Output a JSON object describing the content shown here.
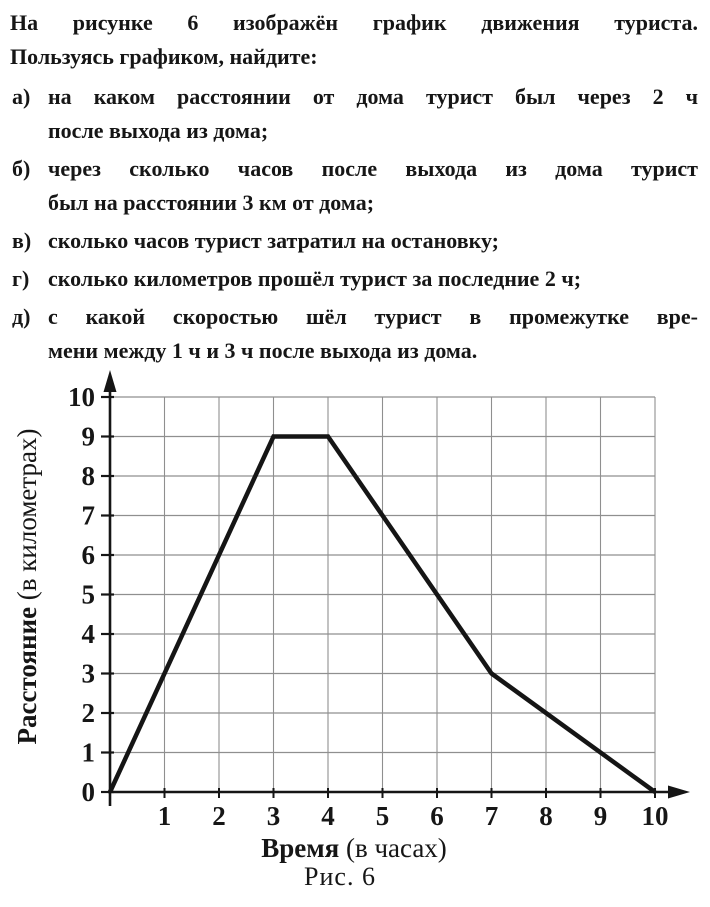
{
  "page": {
    "background": "#ffffff",
    "text_color": "#161616"
  },
  "problem": {
    "intro_lines": [
      "На рисунке 6 изображён график движения туриста.",
      "Пользуясь графиком, найдите:"
    ],
    "items": [
      {
        "label": "а)",
        "lines": [
          "на каком расстоянии от дома турист был через 2 ч",
          "после выхода из дома;"
        ]
      },
      {
        "label": "б)",
        "lines": [
          "через сколько часов после выхода из дома турист",
          "был на расстоянии 3 км от дома;"
        ]
      },
      {
        "label": "в)",
        "lines": [
          "сколько часов турист затратил на остановку;"
        ]
      },
      {
        "label": "г)",
        "lines": [
          "сколько километров прошёл турист за последние 2 ч;"
        ]
      },
      {
        "label": "д)",
        "lines": [
          "с какой скоростью шёл турист в промежутке вре-",
          "мени между 1 ч и 3 ч после выхода из дома."
        ]
      }
    ]
  },
  "chart_data": {
    "type": "line",
    "title": "",
    "xlabel": "Время (в часах)",
    "xlabel_bold": "Время",
    "xlabel_rest": " (в часах)",
    "ylabel": "Расстояние (в километрах)",
    "ylabel_bold": "Расстояние",
    "ylabel_rest": " (в километрах)",
    "xlim": [
      0,
      10
    ],
    "ylim": [
      0,
      10
    ],
    "x_ticks": [
      "1",
      "2",
      "3",
      "4",
      "5",
      "6",
      "7",
      "8",
      "9",
      "10"
    ],
    "y_ticks": [
      "0",
      "1",
      "2",
      "3",
      "4",
      "5",
      "6",
      "7",
      "8",
      "9",
      "10"
    ],
    "grid": true,
    "legend": "none",
    "line_color": "#151515",
    "axis_color": "#151515",
    "grid_color": "#8f8f8f",
    "points": [
      [
        0,
        0
      ],
      [
        3,
        9
      ],
      [
        4,
        9
      ],
      [
        7,
        3
      ],
      [
        10,
        0
      ]
    ]
  },
  "caption": "Рис. 6"
}
